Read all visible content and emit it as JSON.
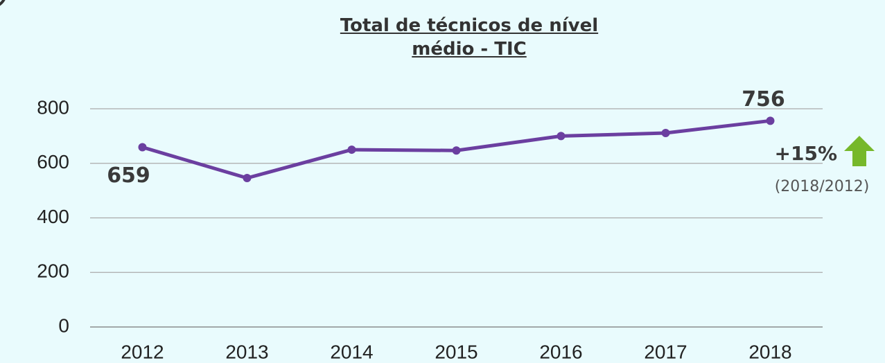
{
  "chart_data": {
    "type": "line",
    "title": "Total de técnicos de nível médio - TIC",
    "categories": [
      "2012",
      "2013",
      "2014",
      "2015",
      "2016",
      "2017",
      "2018"
    ],
    "series": [
      {
        "name": "Total de técnicos de nível médio - TIC",
        "color": "#6b3fa0",
        "values": [
          659,
          546,
          650,
          647,
          700,
          711,
          756
        ],
        "value_labels": [
          "659",
          null,
          null,
          null,
          null,
          null,
          "756"
        ]
      }
    ],
    "ylim": [
      0,
      800
    ],
    "yticks": [
      0,
      200,
      400,
      600,
      800
    ],
    "grid": true,
    "annotations": [
      "+15%",
      "(2018/2012)"
    ],
    "annotation_color": "#76b82a"
  }
}
